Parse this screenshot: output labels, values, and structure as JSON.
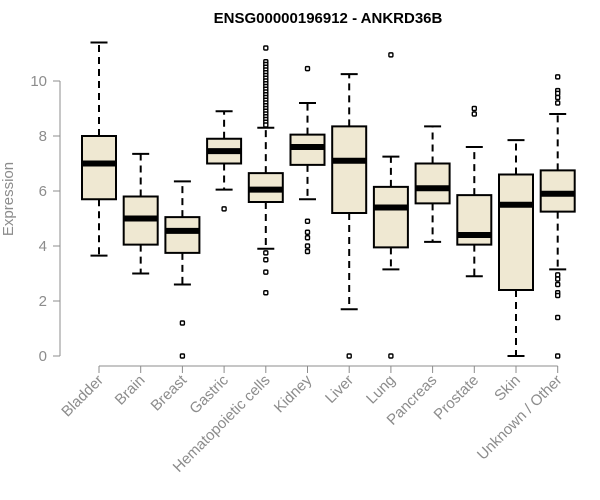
{
  "chart_data": {
    "type": "boxplot",
    "title": "ENSG00000196912 - ANKRD36B",
    "xlabel": "",
    "ylabel": "Expression",
    "ylim": [
      0,
      11.5
    ],
    "yticks": [
      0,
      2,
      4,
      6,
      8,
      10
    ],
    "grid": false,
    "colors": {
      "box_fill": "#efe8d2",
      "box_stroke": "#000000",
      "axis": "#8c8c8c"
    },
    "categories": [
      "Bladder",
      "Brain",
      "Breast",
      "Gastric",
      "Hematopoietic cells",
      "Kidney",
      "Liver",
      "Lung",
      "Pancreas",
      "Prostate",
      "Skin",
      "Unknown / Other"
    ],
    "boxes": [
      {
        "category": "Bladder",
        "whisker_low": 3.65,
        "q1": 5.7,
        "median": 7.0,
        "q3": 8.0,
        "whisker_high": 11.4,
        "outliers": []
      },
      {
        "category": "Brain",
        "whisker_low": 3.0,
        "q1": 4.05,
        "median": 5.0,
        "q3": 5.8,
        "whisker_high": 7.35,
        "outliers": []
      },
      {
        "category": "Breast",
        "whisker_low": 2.6,
        "q1": 3.75,
        "median": 4.55,
        "q3": 5.05,
        "whisker_high": 6.35,
        "outliers": [
          1.2,
          0.0
        ]
      },
      {
        "category": "Gastric",
        "whisker_low": 6.05,
        "q1": 7.0,
        "median": 7.45,
        "q3": 7.9,
        "whisker_high": 8.9,
        "outliers": [
          5.35
        ]
      },
      {
        "category": "Hematopoietic cells",
        "whisker_low": 3.9,
        "q1": 5.6,
        "median": 6.05,
        "q3": 6.65,
        "whisker_high": 8.3,
        "outliers": [
          11.2,
          10.7,
          10.6,
          10.5,
          10.4,
          10.3,
          10.2,
          10.1,
          10.0,
          9.9,
          9.8,
          9.7,
          9.6,
          9.5,
          9.4,
          9.3,
          9.2,
          9.1,
          9.0,
          8.9,
          8.8,
          8.7,
          8.6,
          8.5,
          8.4,
          3.75,
          3.5,
          3.05,
          2.3
        ]
      },
      {
        "category": "Kidney",
        "whisker_low": 5.7,
        "q1": 6.95,
        "median": 7.6,
        "q3": 8.05,
        "whisker_high": 9.2,
        "outliers": [
          10.45,
          4.9,
          4.5,
          4.3,
          4.0,
          3.8
        ]
      },
      {
        "category": "Liver",
        "whisker_low": 1.7,
        "q1": 5.2,
        "median": 7.1,
        "q3": 8.35,
        "whisker_high": 10.25,
        "outliers": [
          0.0
        ]
      },
      {
        "category": "Lung",
        "whisker_low": 3.15,
        "q1": 3.95,
        "median": 5.4,
        "q3": 6.15,
        "whisker_high": 7.25,
        "outliers": [
          10.95,
          0.0
        ]
      },
      {
        "category": "Pancreas",
        "whisker_low": 4.15,
        "q1": 5.55,
        "median": 6.1,
        "q3": 7.0,
        "whisker_high": 8.35,
        "outliers": []
      },
      {
        "category": "Prostate",
        "whisker_low": 2.9,
        "q1": 4.05,
        "median": 4.4,
        "q3": 5.85,
        "whisker_high": 7.6,
        "outliers": [
          9.0,
          8.8
        ]
      },
      {
        "category": "Skin",
        "whisker_low": 0.0,
        "q1": 2.4,
        "median": 5.5,
        "q3": 6.6,
        "whisker_high": 7.85,
        "outliers": []
      },
      {
        "category": "Unknown / Other",
        "whisker_low": 3.15,
        "q1": 5.25,
        "median": 5.9,
        "q3": 6.75,
        "whisker_high": 8.8,
        "outliers": [
          10.15,
          9.65,
          9.55,
          9.4,
          9.2,
          2.95,
          2.8,
          2.6,
          2.3,
          2.2,
          1.4,
          0.0
        ]
      }
    ]
  }
}
